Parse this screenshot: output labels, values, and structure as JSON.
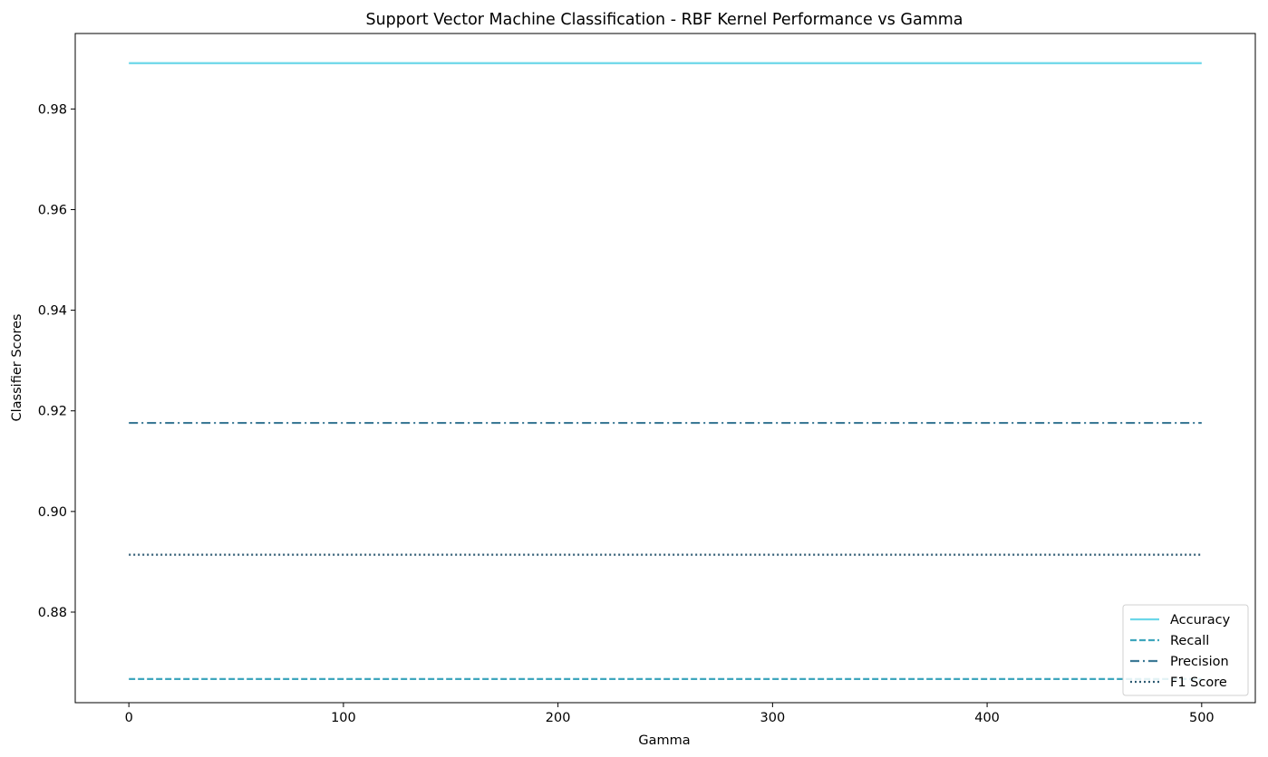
{
  "chart_data": {
    "type": "line",
    "title": "Support Vector Machine Classification - RBF Kernel Performance vs Gamma",
    "xlabel": "Gamma",
    "ylabel": "Classifier Scores",
    "xlim": [
      -25,
      525
    ],
    "ylim": [
      0.862,
      0.995
    ],
    "xticks": [
      0,
      100,
      200,
      300,
      400,
      500
    ],
    "xtick_labels": [
      "0",
      "100",
      "200",
      "300",
      "400",
      "500"
    ],
    "yticks": [
      0.88,
      0.9,
      0.92,
      0.94,
      0.96,
      0.98
    ],
    "ytick_labels": [
      "0.88",
      "0.90",
      "0.92",
      "0.94",
      "0.96",
      "0.98"
    ],
    "x": [
      0,
      500
    ],
    "series": [
      {
        "name": "Accuracy",
        "values": [
          0.9891,
          0.9891
        ],
        "color": "#6cd7e9",
        "style": "solid"
      },
      {
        "name": "Recall",
        "values": [
          0.8667,
          0.8667
        ],
        "color": "#3fa6bd",
        "style": "dashed"
      },
      {
        "name": "Precision",
        "values": [
          0.9176,
          0.9176
        ],
        "color": "#3d7a96",
        "style": "dashdot"
      },
      {
        "name": "F1 Score",
        "values": [
          0.8914,
          0.8914
        ],
        "color": "#2e5a72",
        "style": "dotted"
      }
    ],
    "grid": false,
    "legend_position": "lower right"
  }
}
